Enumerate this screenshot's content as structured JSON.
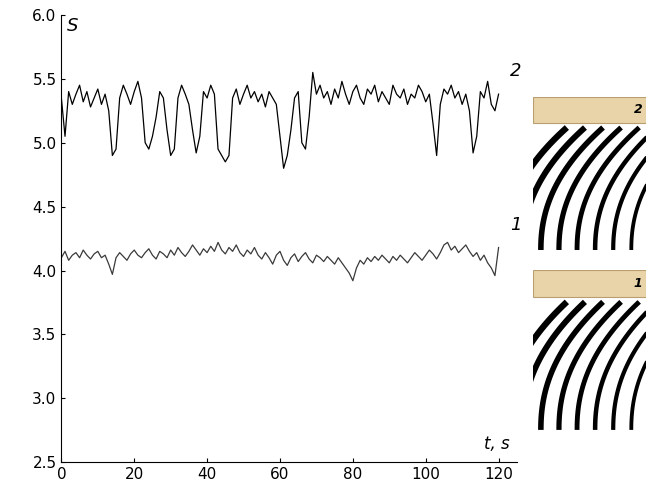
{
  "chart_data": {
    "type": "line",
    "x_label": "t, s",
    "y_label": "S",
    "x": [
      0,
      1,
      2,
      3,
      4,
      5,
      6,
      7,
      8,
      9,
      10,
      11,
      12,
      13,
      14,
      15,
      16,
      17,
      18,
      19,
      20,
      21,
      22,
      23,
      24,
      25,
      26,
      27,
      28,
      29,
      30,
      31,
      32,
      33,
      34,
      35,
      36,
      37,
      38,
      39,
      40,
      41,
      42,
      43,
      44,
      45,
      46,
      47,
      48,
      49,
      50,
      51,
      52,
      53,
      54,
      55,
      56,
      57,
      58,
      59,
      60,
      61,
      62,
      63,
      64,
      65,
      66,
      67,
      68,
      69,
      70,
      71,
      72,
      73,
      74,
      75,
      76,
      77,
      78,
      79,
      80,
      81,
      82,
      83,
      84,
      85,
      86,
      87,
      88,
      89,
      90,
      91,
      92,
      93,
      94,
      95,
      96,
      97,
      98,
      99,
      100,
      101,
      102,
      103,
      104,
      105,
      106,
      107,
      108,
      109,
      110,
      111,
      112,
      113,
      114,
      115,
      116,
      117,
      118,
      119,
      120
    ],
    "series": [
      {
        "name": "1",
        "color": "#3a3a3a",
        "values": [
          4.1,
          4.15,
          4.08,
          4.12,
          4.14,
          4.1,
          4.16,
          4.12,
          4.09,
          4.13,
          4.15,
          4.1,
          4.12,
          4.05,
          3.97,
          4.1,
          4.14,
          4.11,
          4.08,
          4.13,
          4.16,
          4.12,
          4.1,
          4.14,
          4.17,
          4.12,
          4.09,
          4.15,
          4.13,
          4.1,
          4.16,
          4.12,
          4.18,
          4.14,
          4.11,
          4.15,
          4.2,
          4.16,
          4.12,
          4.17,
          4.14,
          4.19,
          4.15,
          4.22,
          4.16,
          4.13,
          4.18,
          4.15,
          4.2,
          4.14,
          4.11,
          4.16,
          4.13,
          4.18,
          4.12,
          4.09,
          4.14,
          4.1,
          4.05,
          4.12,
          4.15,
          4.08,
          4.04,
          4.1,
          4.13,
          4.07,
          4.11,
          4.14,
          4.09,
          4.06,
          4.12,
          4.1,
          4.07,
          4.11,
          4.08,
          4.05,
          4.1,
          4.06,
          4.02,
          3.98,
          3.92,
          4.02,
          4.08,
          4.05,
          4.1,
          4.07,
          4.11,
          4.08,
          4.12,
          4.09,
          4.06,
          4.11,
          4.08,
          4.12,
          4.09,
          4.06,
          4.1,
          4.14,
          4.11,
          4.08,
          4.12,
          4.16,
          4.13,
          4.09,
          4.14,
          4.2,
          4.22,
          4.16,
          4.19,
          4.14,
          4.17,
          4.2,
          4.15,
          4.11,
          4.14,
          4.08,
          4.12,
          4.06,
          4.02,
          3.96,
          4.18
        ]
      },
      {
        "name": "2",
        "color": "#000000",
        "values": [
          5.35,
          5.05,
          5.4,
          5.3,
          5.38,
          5.45,
          5.32,
          5.4,
          5.28,
          5.35,
          5.42,
          5.3,
          5.38,
          5.25,
          4.9,
          4.95,
          5.35,
          5.45,
          5.38,
          5.3,
          5.4,
          5.48,
          5.35,
          5.0,
          4.95,
          5.05,
          5.2,
          5.4,
          5.35,
          5.1,
          4.9,
          4.95,
          5.35,
          5.45,
          5.38,
          5.3,
          5.1,
          4.92,
          5.05,
          5.4,
          5.35,
          5.45,
          5.38,
          4.95,
          4.9,
          4.85,
          4.9,
          5.35,
          5.42,
          5.3,
          5.38,
          5.45,
          5.35,
          5.4,
          5.32,
          5.38,
          5.28,
          5.4,
          5.35,
          5.3,
          5.05,
          4.8,
          4.9,
          5.1,
          5.35,
          5.4,
          5.0,
          4.95,
          5.2,
          5.55,
          5.38,
          5.45,
          5.35,
          5.4,
          5.3,
          5.42,
          5.35,
          5.48,
          5.38,
          5.3,
          5.4,
          5.45,
          5.35,
          5.3,
          5.42,
          5.38,
          5.45,
          5.32,
          5.4,
          5.35,
          5.3,
          5.45,
          5.38,
          5.35,
          5.42,
          5.3,
          5.38,
          5.35,
          5.45,
          5.4,
          5.32,
          5.38,
          5.15,
          4.9,
          5.3,
          5.42,
          5.38,
          5.45,
          5.35,
          5.4,
          5.3,
          5.38,
          5.25,
          4.92,
          5.05,
          5.4,
          5.35,
          5.48,
          5.3,
          5.25,
          5.38
        ]
      }
    ],
    "xlim": [
      0,
      125
    ],
    "ylim": [
      2.5,
      6.0
    ],
    "xticks": [
      0,
      20,
      40,
      60,
      80,
      100,
      120
    ],
    "yticks": [
      2.5,
      {
        "value": 3,
        "label": "3.0"
      },
      3.5,
      {
        "value": 4,
        "label": "4.0"
      },
      4.5,
      {
        "value": 5,
        "label": "5.0"
      },
      5.5,
      {
        "value": 6,
        "label": "6.0"
      }
    ],
    "grid": false
  }
}
